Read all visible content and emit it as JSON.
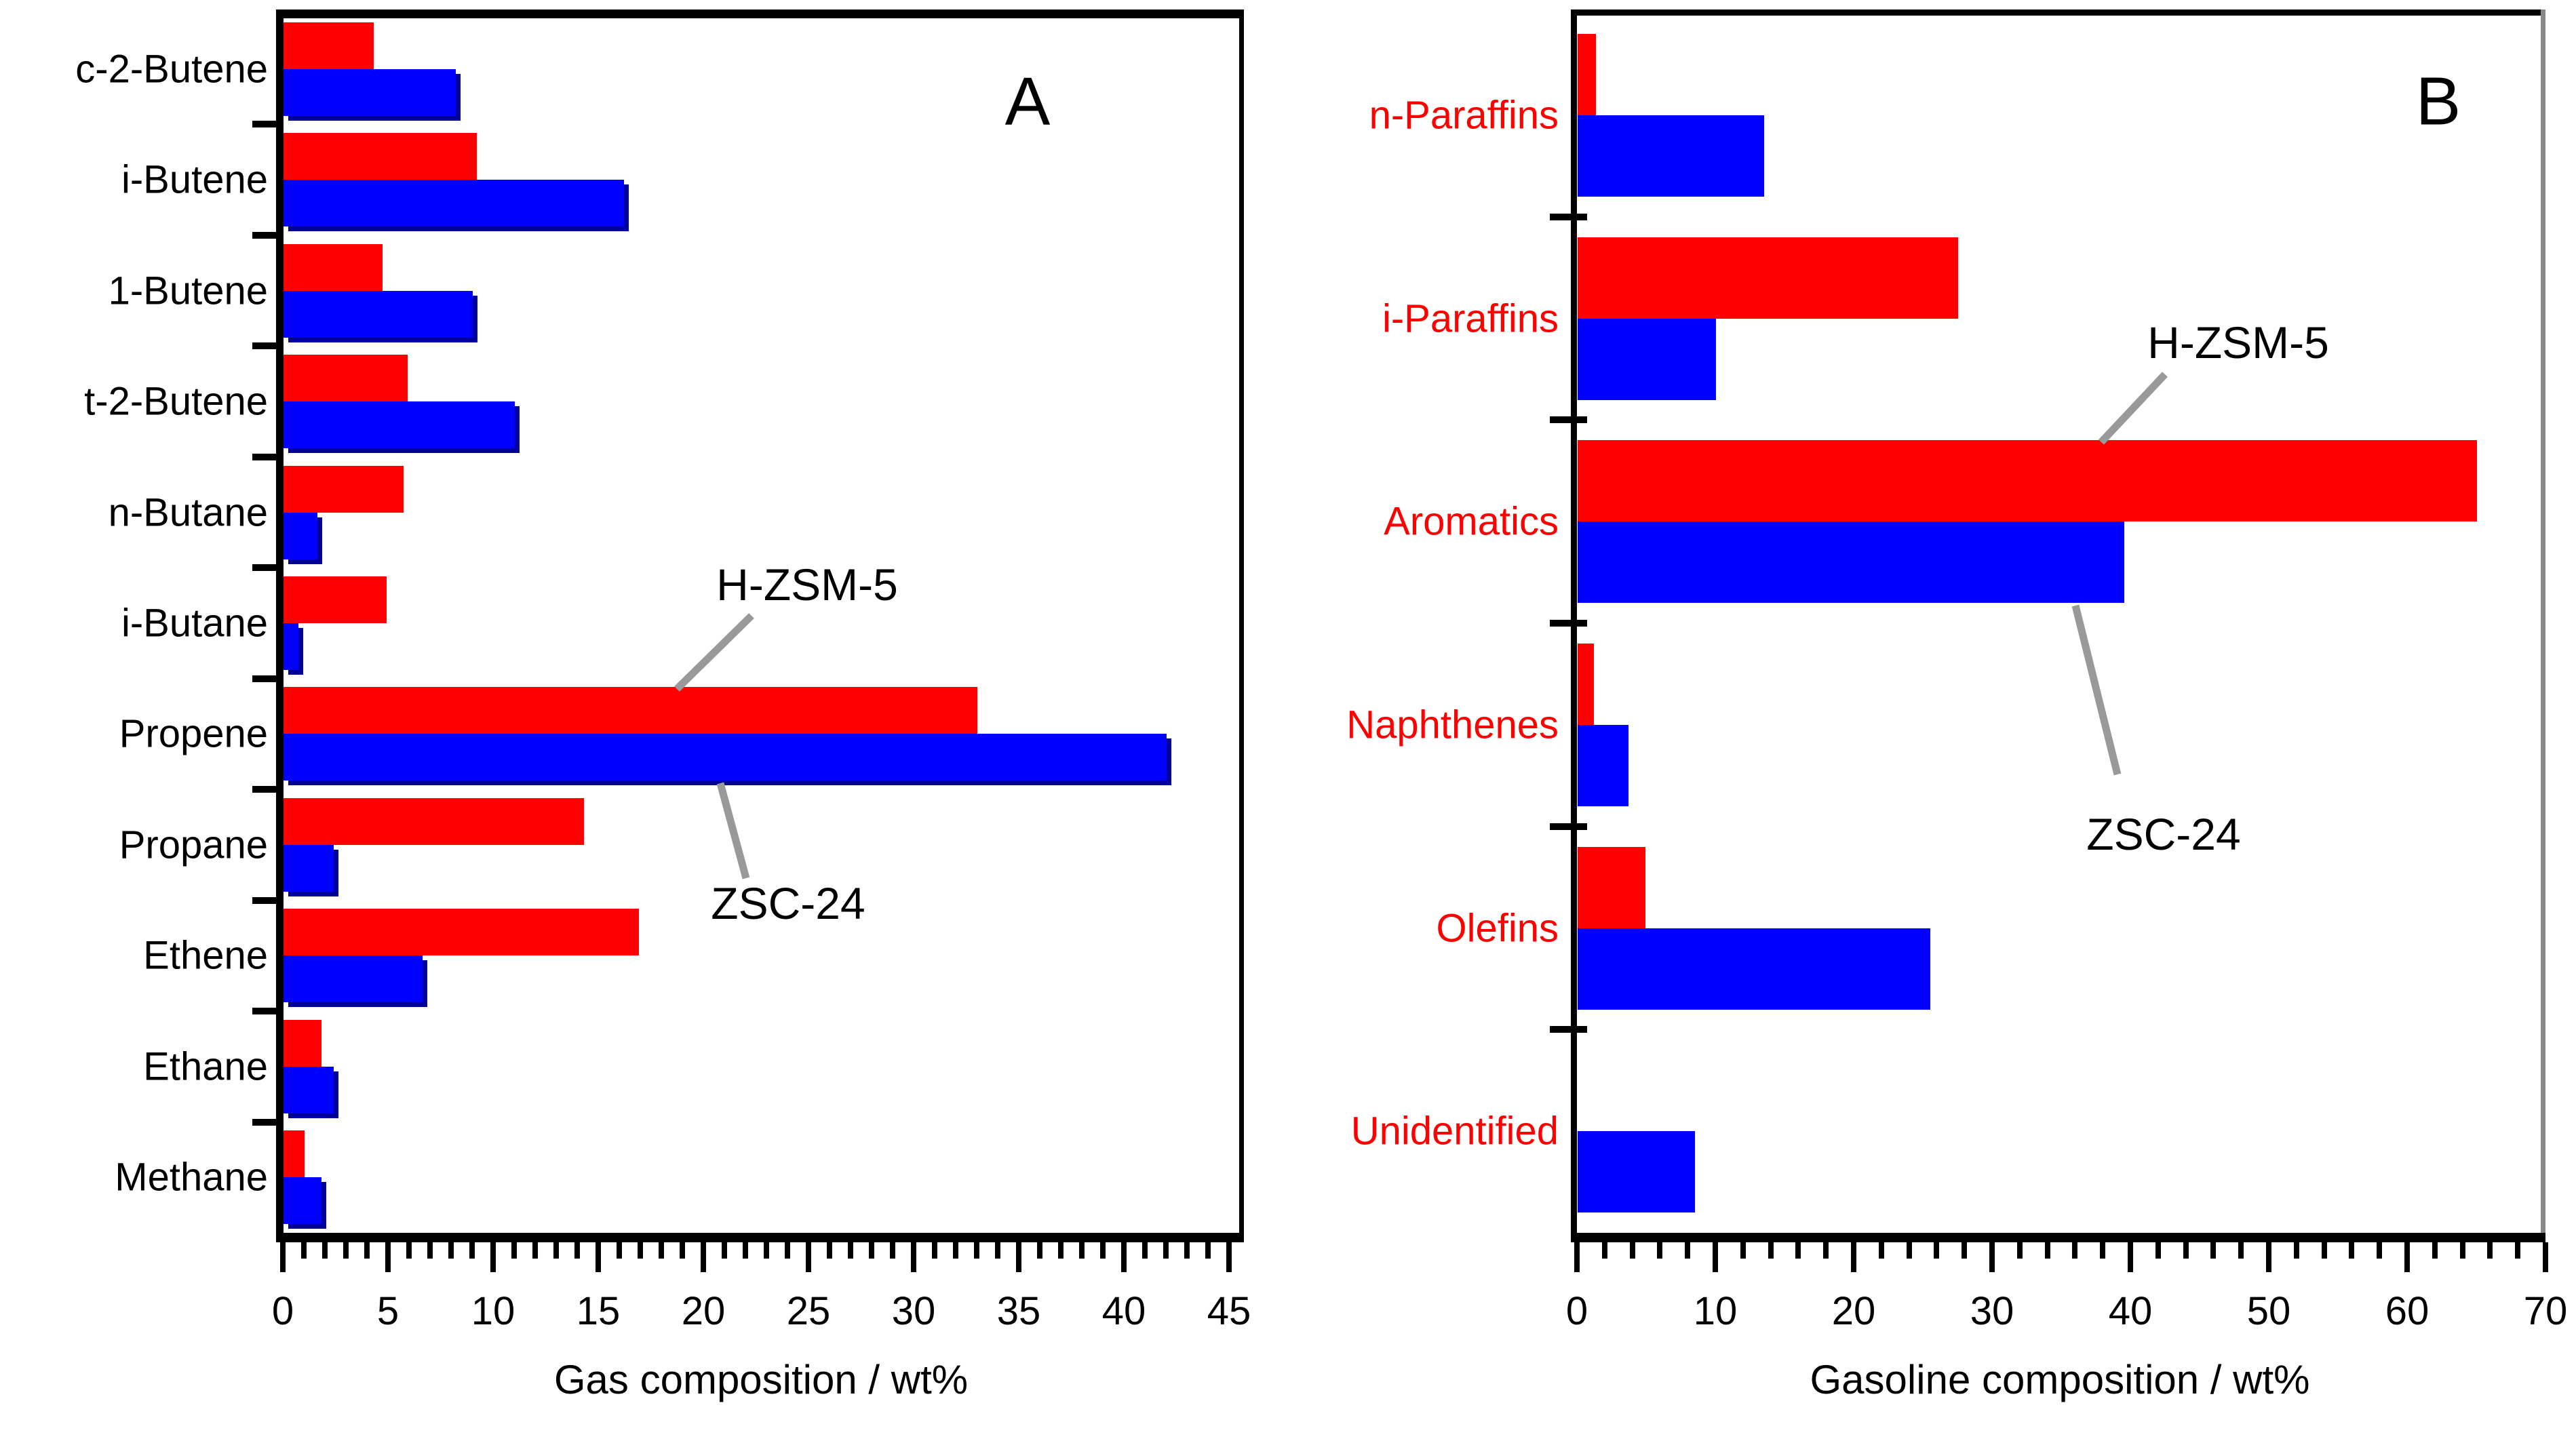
{
  "figure": {
    "background": "#ffffff",
    "panels": [
      {
        "id": "A",
        "letter": "A",
        "axis_title": "Gas composition / wt%"
      },
      {
        "id": "B",
        "letter": "B",
        "axis_title": "Gasoline composition / wt%"
      }
    ]
  },
  "chart_data": [
    {
      "type": "bar",
      "orientation": "horizontal",
      "panel": "A",
      "title": "",
      "xlabel": "Gas composition / wt%",
      "xlim": [
        0,
        45
      ],
      "x_major_ticks": [
        0,
        5,
        10,
        15,
        20,
        25,
        30,
        35,
        40,
        45
      ],
      "x_minor_step": 1,
      "grid": false,
      "legend_position": "none",
      "category_label_color": "#000000",
      "categories": [
        "c-2-Butene",
        "i-Butene",
        "1-Butene",
        "t-2-Butene",
        "n-Butane",
        "i-Butane",
        "Propene",
        "Propane",
        "Ethene",
        "Ethane",
        "Methane"
      ],
      "series": [
        {
          "name": "H-ZSM-5",
          "color": "#ff0000",
          "values": [
            4.3,
            9.2,
            4.7,
            5.9,
            5.7,
            4.9,
            33,
            14.3,
            16.9,
            1.8,
            1.0
          ]
        },
        {
          "name": "ZSC-24",
          "color": "#0000ff",
          "values": [
            8.2,
            16.2,
            9.0,
            11.0,
            1.6,
            0.7,
            42,
            2.4,
            6.6,
            2.4,
            1.8
          ]
        }
      ]
    },
    {
      "type": "bar",
      "orientation": "horizontal",
      "panel": "B",
      "title": "",
      "xlabel": "Gasoline composition / wt%",
      "xlim": [
        0,
        70
      ],
      "x_major_ticks": [
        0,
        10,
        20,
        30,
        40,
        50,
        60,
        70
      ],
      "x_minor_step": 2,
      "grid": false,
      "legend_position": "none",
      "category_label_color": "#ff0000",
      "categories": [
        "n-Paraffins",
        "i-Paraffins",
        "Aromatics",
        "Naphthenes",
        "Olefins",
        "Unidentified"
      ],
      "series": [
        {
          "name": "H-ZSM-5",
          "color": "#ff0000",
          "values": [
            1.3,
            27.5,
            65,
            1.2,
            4.9,
            0
          ]
        },
        {
          "name": "ZSC-24",
          "color": "#0000ff",
          "values": [
            13.5,
            10,
            39.5,
            3.7,
            25.5,
            8.5
          ]
        }
      ]
    }
  ],
  "annotations": [
    {
      "panel": "A",
      "label": "H-ZSM-5",
      "points_to": "red Propene bar"
    },
    {
      "panel": "A",
      "label": "ZSC-24",
      "points_to": "blue Propene bar"
    },
    {
      "panel": "B",
      "label": "H-ZSM-5",
      "points_to": "red Aromatics bar"
    },
    {
      "panel": "B",
      "label": "ZSC-24",
      "points_to": "blue Aromatics bar"
    }
  ],
  "colors": {
    "h_zsm_5_bar": "#ff0000",
    "zsc_24_bar": "#0000ff",
    "zsc_24_shadow": "#000099",
    "callout_line": "#999999",
    "frame": "#000000",
    "panel_b_right_frame": "#888888",
    "panel_b_category_labels": "#ff0000"
  }
}
